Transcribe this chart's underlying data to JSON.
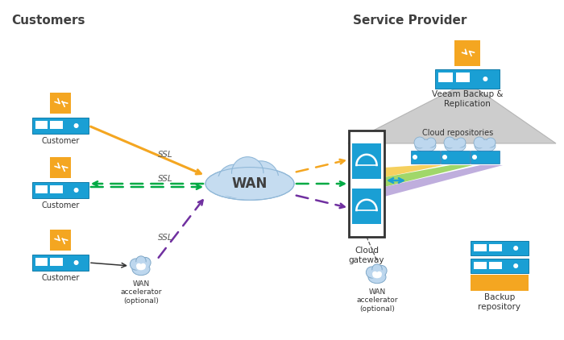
{
  "title_customers": "Customers",
  "title_service_provider": "Service Provider",
  "bg_color": "#ffffff",
  "orange": "#F4A621",
  "blue": "#1A9FD4",
  "green": "#00AA44",
  "purple": "#7030A0",
  "light_gray": "#C8C8C8",
  "cloud_color": "#C5DCF0",
  "label_customer": "Customer",
  "label_cloud_gateway": "Cloud\ngateway",
  "label_veeam": "Veeam Backup &\nReplication",
  "label_wan_accel_sp": "WAN\naccelerator\n(optional)",
  "label_wan_accel_cust": "WAN\naccelerator\n(optional)",
  "label_backup_repo": "Backup\nrepository",
  "label_cloud_repos": "Cloud repositories",
  "label_wan": "WAN",
  "label_ssl": "SSL"
}
